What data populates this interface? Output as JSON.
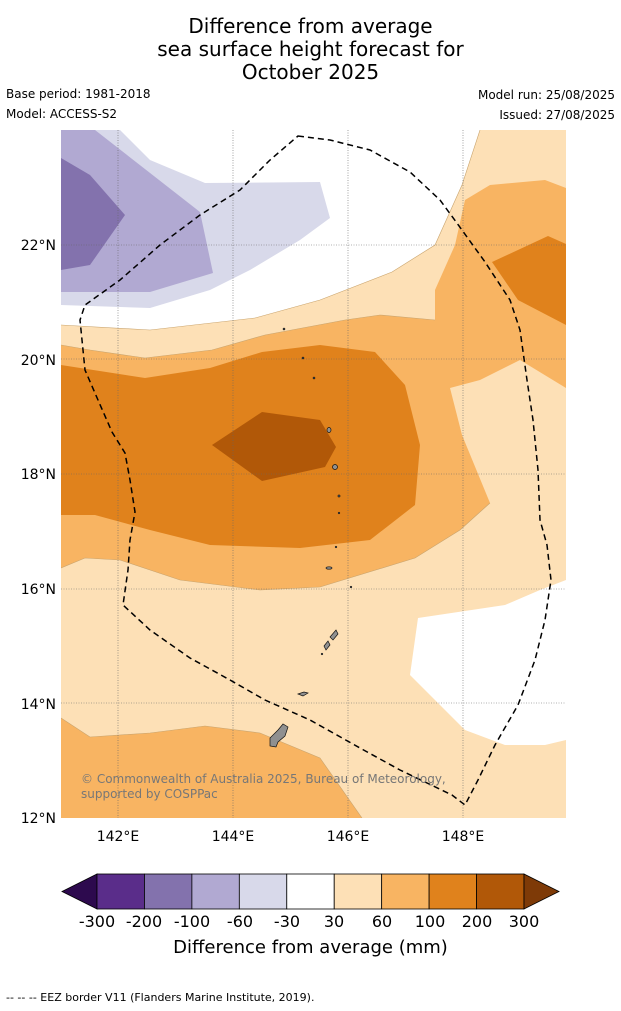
{
  "title": {
    "line1": "Difference from average",
    "line2": "sea surface height forecast for",
    "line3": "October 2025"
  },
  "meta": {
    "base_period": "Base period: 1981-2018",
    "model": "Model: ACCESS-S2",
    "model_run": "Model run: 25/08/2025",
    "issued": "Issued: 27/08/2025"
  },
  "map": {
    "lat_labels": [
      "22°N",
      "20°N",
      "18°N",
      "16°N",
      "14°N",
      "12°N"
    ],
    "lon_labels": [
      "142°E",
      "144°E",
      "146°E",
      "148°E"
    ],
    "copyright": "© Commonwealth of Australia 2025, Bureau of Meteorology, supported by COSPPac",
    "land_color": "#909090"
  },
  "colorbar": {
    "ticks": [
      "-300",
      "-200",
      "-100",
      "-60",
      "-30",
      "30",
      "60",
      "100",
      "200",
      "300"
    ],
    "colors": [
      "#2d0a4e",
      "#5a2d8a",
      "#8372ad",
      "#b1a9d2",
      "#d8d9ea",
      "#ffffff",
      "#fde0b6",
      "#f8b462",
      "#e0821c",
      "#b15808",
      "#7e3a07"
    ],
    "title": "Difference from average (mm)"
  },
  "footer": "--  --  -- EEZ border V11 (Flanders Marine Institute, 2019)."
}
